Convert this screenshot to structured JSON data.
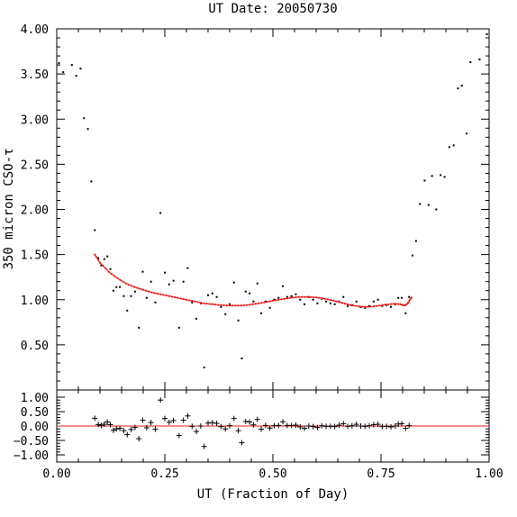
{
  "chart_data": {
    "type": "scatter",
    "title": "UT Date: 20050730",
    "xlabel": "UT (Fraction of Day)",
    "ylabel": "350 micron CSO-τ",
    "xlim": [
      0,
      1
    ],
    "ylim": [
      0,
      4
    ],
    "resid_ylim": [
      -1.25,
      1.25
    ],
    "x_ticks": [
      "0.00",
      "0.25",
      "0.50",
      "0.75",
      "1.00"
    ],
    "y_ticks": [
      "0.50",
      "1.00",
      "1.50",
      "2.00",
      "2.50",
      "3.00",
      "3.50",
      "4.00"
    ],
    "resid_ticks": [
      "1.00",
      "0.50",
      "0.00",
      "−0.50",
      "−1.00"
    ],
    "colors": {
      "fit": "#e8221c",
      "points": "#000000",
      "axes": "#000000"
    },
    "observed": [
      [
        0.005,
        3.62
      ],
      [
        0.015,
        3.52
      ],
      [
        0.035,
        3.6
      ],
      [
        0.045,
        3.48
      ],
      [
        0.055,
        3.56
      ],
      [
        0.063,
        3.01
      ],
      [
        0.072,
        2.89
      ],
      [
        0.08,
        2.31
      ],
      [
        0.088,
        1.77
      ],
      [
        0.096,
        1.46
      ],
      [
        0.103,
        1.38
      ],
      [
        0.11,
        1.45
      ],
      [
        0.117,
        1.48
      ],
      [
        0.124,
        1.34
      ],
      [
        0.131,
        1.1
      ],
      [
        0.138,
        1.14
      ],
      [
        0.146,
        1.14
      ],
      [
        0.155,
        1.04
      ],
      [
        0.163,
        0.88
      ],
      [
        0.172,
        1.04
      ],
      [
        0.181,
        1.09
      ],
      [
        0.19,
        0.69
      ],
      [
        0.199,
        1.31
      ],
      [
        0.208,
        1.02
      ],
      [
        0.218,
        1.2
      ],
      [
        0.228,
        0.97
      ],
      [
        0.24,
        1.96
      ],
      [
        0.25,
        1.3
      ],
      [
        0.26,
        1.17
      ],
      [
        0.27,
        1.21
      ],
      [
        0.283,
        0.69
      ],
      [
        0.293,
        1.2
      ],
      [
        0.303,
        1.35
      ],
      [
        0.313,
        0.97
      ],
      [
        0.323,
        0.79
      ],
      [
        0.333,
        0.96
      ],
      [
        0.341,
        0.25
      ],
      [
        0.35,
        1.05
      ],
      [
        0.36,
        1.07
      ],
      [
        0.37,
        1.03
      ],
      [
        0.38,
        0.92
      ],
      [
        0.39,
        0.84
      ],
      [
        0.4,
        0.95
      ],
      [
        0.41,
        1.19
      ],
      [
        0.42,
        0.77
      ],
      [
        0.428,
        0.35
      ],
      [
        0.437,
        1.09
      ],
      [
        0.446,
        1.07
      ],
      [
        0.455,
        0.98
      ],
      [
        0.464,
        1.18
      ],
      [
        0.473,
        0.85
      ],
      [
        0.483,
        0.98
      ],
      [
        0.493,
        0.91
      ],
      [
        0.503,
        1.0
      ],
      [
        0.513,
        1.02
      ],
      [
        0.523,
        1.15
      ],
      [
        0.533,
        1.03
      ],
      [
        0.543,
        1.04
      ],
      [
        0.553,
        1.06
      ],
      [
        0.563,
        1.0
      ],
      [
        0.573,
        0.95
      ],
      [
        0.583,
        1.03
      ],
      [
        0.593,
        1.0
      ],
      [
        0.603,
        0.96
      ],
      [
        0.613,
        1.01
      ],
      [
        0.623,
        0.98
      ],
      [
        0.633,
        0.96
      ],
      [
        0.643,
        0.95
      ],
      [
        0.653,
        0.98
      ],
      [
        0.663,
        1.03
      ],
      [
        0.673,
        0.93
      ],
      [
        0.683,
        0.94
      ],
      [
        0.693,
        0.98
      ],
      [
        0.703,
        0.92
      ],
      [
        0.713,
        0.91
      ],
      [
        0.723,
        0.93
      ],
      [
        0.733,
        0.98
      ],
      [
        0.743,
        1.0
      ],
      [
        0.753,
        0.93
      ],
      [
        0.763,
        0.94
      ],
      [
        0.773,
        0.92
      ],
      [
        0.783,
        0.95
      ],
      [
        0.79,
        1.02
      ],
      [
        0.798,
        1.02
      ],
      [
        0.807,
        0.85
      ],
      [
        0.815,
        1.03
      ],
      [
        0.823,
        1.49
      ],
      [
        0.831,
        1.65
      ],
      [
        0.84,
        2.06
      ],
      [
        0.851,
        2.32
      ],
      [
        0.86,
        2.05
      ],
      [
        0.868,
        2.37
      ],
      [
        0.878,
        2.0
      ],
      [
        0.888,
        2.38
      ],
      [
        0.897,
        2.36
      ],
      [
        0.908,
        2.69
      ],
      [
        0.918,
        2.71
      ],
      [
        0.928,
        3.34
      ],
      [
        0.937,
        3.37
      ],
      [
        0.948,
        2.84
      ],
      [
        0.957,
        3.63
      ],
      [
        0.978,
        3.66
      ],
      [
        0.995,
        3.94
      ]
    ],
    "fit": [
      [
        0.088,
        1.5
      ],
      [
        0.1,
        1.41
      ],
      [
        0.12,
        1.31
      ],
      [
        0.14,
        1.24
      ],
      [
        0.16,
        1.18
      ],
      [
        0.18,
        1.14
      ],
      [
        0.2,
        1.11
      ],
      [
        0.22,
        1.08
      ],
      [
        0.24,
        1.06
      ],
      [
        0.26,
        1.04
      ],
      [
        0.28,
        1.02
      ],
      [
        0.3,
        1.0
      ],
      [
        0.32,
        0.98
      ],
      [
        0.34,
        0.96
      ],
      [
        0.36,
        0.95
      ],
      [
        0.38,
        0.94
      ],
      [
        0.4,
        0.935
      ],
      [
        0.42,
        0.935
      ],
      [
        0.44,
        0.94
      ],
      [
        0.46,
        0.955
      ],
      [
        0.48,
        0.97
      ],
      [
        0.5,
        0.99
      ],
      [
        0.52,
        1.005
      ],
      [
        0.54,
        1.02
      ],
      [
        0.56,
        1.03
      ],
      [
        0.58,
        1.03
      ],
      [
        0.6,
        1.025
      ],
      [
        0.62,
        1.01
      ],
      [
        0.64,
        0.99
      ],
      [
        0.66,
        0.965
      ],
      [
        0.68,
        0.94
      ],
      [
        0.7,
        0.925
      ],
      [
        0.72,
        0.92
      ],
      [
        0.74,
        0.93
      ],
      [
        0.76,
        0.945
      ],
      [
        0.78,
        0.955
      ],
      [
        0.795,
        0.95
      ],
      [
        0.805,
        0.935
      ],
      [
        0.812,
        0.96
      ],
      [
        0.818,
        1.01
      ],
      [
        0.822,
        1.03
      ]
    ],
    "residuals": [
      [
        0.088,
        0.27
      ],
      [
        0.096,
        0.05
      ],
      [
        0.103,
        0.02
      ],
      [
        0.11,
        0.06
      ],
      [
        0.117,
        0.14
      ],
      [
        0.124,
        0.05
      ],
      [
        0.131,
        -0.15
      ],
      [
        0.138,
        -0.1
      ],
      [
        0.146,
        -0.08
      ],
      [
        0.155,
        -0.16
      ],
      [
        0.163,
        -0.3
      ],
      [
        0.172,
        -0.12
      ],
      [
        0.181,
        -0.05
      ],
      [
        0.19,
        -0.44
      ],
      [
        0.199,
        0.2
      ],
      [
        0.208,
        -0.06
      ],
      [
        0.218,
        0.12
      ],
      [
        0.228,
        -0.11
      ],
      [
        0.24,
        0.9
      ],
      [
        0.25,
        0.26
      ],
      [
        0.26,
        0.13
      ],
      [
        0.27,
        0.19
      ],
      [
        0.283,
        -0.33
      ],
      [
        0.293,
        0.2
      ],
      [
        0.303,
        0.35
      ],
      [
        0.313,
        -0.01
      ],
      [
        0.323,
        -0.19
      ],
      [
        0.333,
        0.0
      ],
      [
        0.341,
        -0.71
      ],
      [
        0.35,
        0.1
      ],
      [
        0.36,
        0.12
      ],
      [
        0.37,
        0.09
      ],
      [
        0.38,
        -0.02
      ],
      [
        0.39,
        -0.1
      ],
      [
        0.4,
        0.01
      ],
      [
        0.41,
        0.26
      ],
      [
        0.42,
        -0.16
      ],
      [
        0.428,
        -0.58
      ],
      [
        0.437,
        0.16
      ],
      [
        0.446,
        0.14
      ],
      [
        0.455,
        0.04
      ],
      [
        0.464,
        0.23
      ],
      [
        0.473,
        -0.11
      ],
      [
        0.483,
        0.02
      ],
      [
        0.493,
        -0.07
      ],
      [
        0.503,
        0.01
      ],
      [
        0.513,
        0.02
      ],
      [
        0.523,
        0.15
      ],
      [
        0.533,
        0.02
      ],
      [
        0.543,
        0.02
      ],
      [
        0.553,
        0.03
      ],
      [
        0.563,
        -0.03
      ],
      [
        0.573,
        -0.08
      ],
      [
        0.583,
        0.0
      ],
      [
        0.593,
        -0.02
      ],
      [
        0.603,
        -0.05
      ],
      [
        0.613,
        0.01
      ],
      [
        0.623,
        -0.01
      ],
      [
        0.633,
        -0.01
      ],
      [
        0.643,
        -0.02
      ],
      [
        0.653,
        0.03
      ],
      [
        0.663,
        0.08
      ],
      [
        0.673,
        -0.01
      ],
      [
        0.683,
        0.01
      ],
      [
        0.693,
        0.06
      ],
      [
        0.703,
        0.0
      ],
      [
        0.713,
        -0.01
      ],
      [
        0.723,
        0.01
      ],
      [
        0.733,
        0.05
      ],
      [
        0.743,
        0.06
      ],
      [
        0.753,
        -0.02
      ],
      [
        0.763,
        -0.01
      ],
      [
        0.773,
        -0.03
      ],
      [
        0.783,
        0.0
      ],
      [
        0.79,
        0.07
      ],
      [
        0.798,
        0.08
      ],
      [
        0.807,
        -0.08
      ],
      [
        0.815,
        0.02
      ]
    ]
  }
}
